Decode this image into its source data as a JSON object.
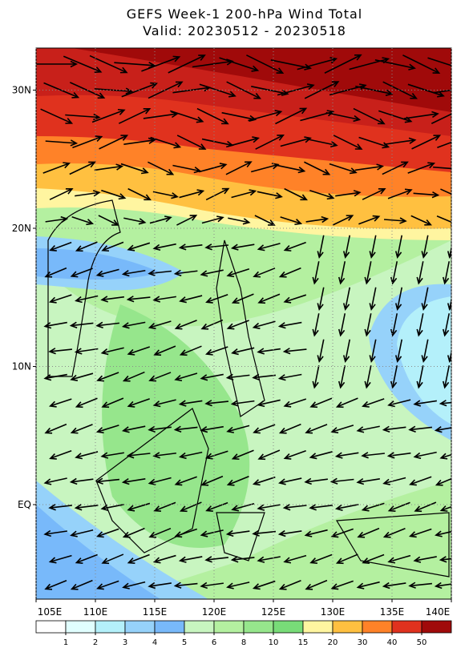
{
  "title": "GEFS Week-1 200-hPa Wind Total",
  "subtitle": "Valid: 20230512 - 20230518",
  "x_axis": {
    "ticks": [
      {
        "value": 105,
        "label": "105E"
      },
      {
        "value": 110,
        "label": "110E"
      },
      {
        "value": 115,
        "label": "115E"
      },
      {
        "value": 120,
        "label": "120E"
      },
      {
        "value": 125,
        "label": "125E"
      },
      {
        "value": 130,
        "label": "130E"
      },
      {
        "value": 135,
        "label": "135E"
      },
      {
        "value": 140,
        "label": "140E"
      }
    ]
  },
  "y_axis": {
    "ticks": [
      {
        "value": 30,
        "label": "30N"
      },
      {
        "value": 20,
        "label": "20N"
      },
      {
        "value": 10,
        "label": "10N"
      },
      {
        "value": 0,
        "label": "EQ"
      }
    ]
  },
  "colorbar": {
    "labels": [
      1,
      2,
      3,
      4,
      5,
      6,
      8,
      10,
      15,
      20,
      30,
      40,
      50
    ],
    "colors": [
      "#ffffff",
      "#e1ffff",
      "#b4f0fa",
      "#96d2fa",
      "#78b9fa",
      "#c8f5c0",
      "#b4f0a0",
      "#96e68c",
      "#78dc78",
      "#fff5a0",
      "#ffc040",
      "#ff8228",
      "#e0321e",
      "#a00a0a"
    ]
  }
}
